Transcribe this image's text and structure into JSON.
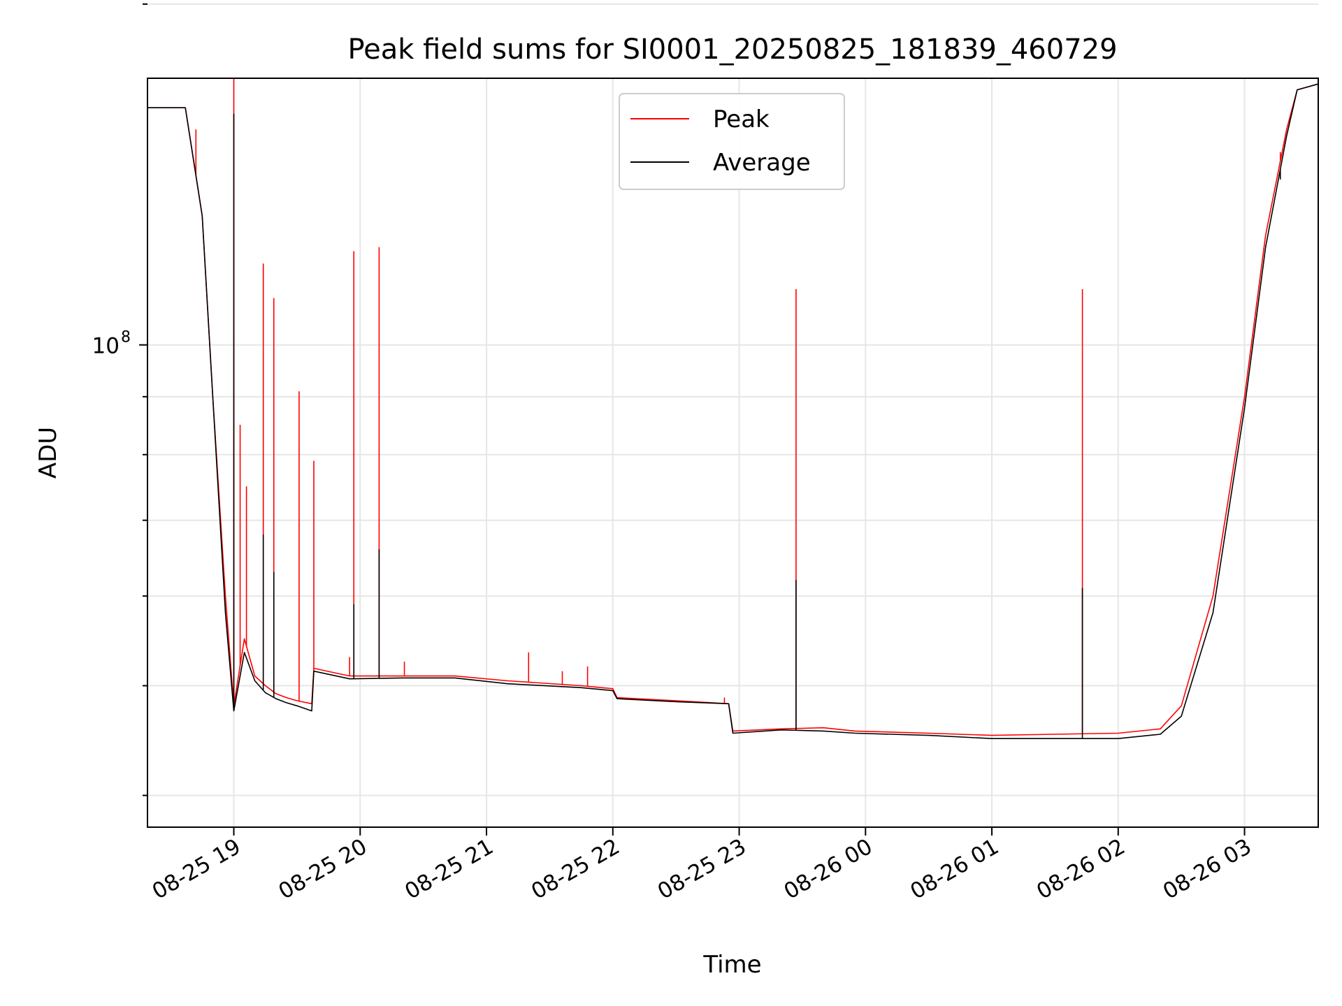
{
  "chart_data": {
    "type": "line",
    "title": "Peak field sums for SI0001_20250825_181839_460729",
    "xlabel": "Time",
    "ylabel": "ADU",
    "y_scale": "log",
    "grid": true,
    "legend_placement": "upper-center",
    "x_range": [
      "2025-08-25 18:19",
      "2025-08-26 03:35"
    ],
    "ylim": [
      37500000,
      172000000
    ],
    "x_ticks": [
      {
        "t": "2025-08-25 19:00",
        "label": "08-25 19"
      },
      {
        "t": "2025-08-25 20:00",
        "label": "08-25 20"
      },
      {
        "t": "2025-08-25 21:00",
        "label": "08-25 21"
      },
      {
        "t": "2025-08-25 22:00",
        "label": "08-25 22"
      },
      {
        "t": "2025-08-25 23:00",
        "label": "08-25 23"
      },
      {
        "t": "2025-08-26 00:00",
        "label": "08-26 00"
      },
      {
        "t": "2025-08-26 01:00",
        "label": "08-26 01"
      },
      {
        "t": "2025-08-26 02:00",
        "label": "08-26 02"
      },
      {
        "t": "2025-08-26 03:00",
        "label": "08-26 03"
      }
    ],
    "y_major_ticks": [
      {
        "value": 100000000,
        "label": "10",
        "exponent": "8"
      }
    ],
    "y_minor_gridlines": [
      40000000,
      50000000,
      60000000,
      70000000,
      80000000,
      90000000,
      200000000
    ],
    "series": [
      {
        "name": "Peak",
        "color": "#ff0000",
        "points": [
          [
            "2025-08-25 18:19",
            162000000
          ],
          [
            "2025-08-25 18:37",
            162000000
          ],
          [
            "2025-08-25 18:45",
            130000000
          ],
          [
            "2025-08-25 18:50",
            90000000
          ],
          [
            "2025-08-25 18:56",
            60000000
          ],
          [
            "2025-08-25 19:00",
            48000000
          ],
          [
            "2025-08-25 19:05",
            55000000
          ],
          [
            "2025-08-25 19:10",
            51000000
          ],
          [
            "2025-08-25 19:15",
            50000000
          ],
          [
            "2025-08-25 19:20",
            49200000
          ],
          [
            "2025-08-25 19:25",
            48800000
          ],
          [
            "2025-08-25 19:30",
            48500000
          ],
          [
            "2025-08-25 19:37",
            48200000
          ],
          [
            "2025-08-25 19:38",
            51800000
          ],
          [
            "2025-08-25 19:55",
            51000000
          ],
          [
            "2025-08-25 20:20",
            51000000
          ],
          [
            "2025-08-25 20:45",
            51000000
          ],
          [
            "2025-08-25 21:10",
            50500000
          ],
          [
            "2025-08-25 21:45",
            50000000
          ],
          [
            "2025-08-25 22:00",
            49700000
          ],
          [
            "2025-08-25 22:02",
            48800000
          ],
          [
            "2025-08-25 22:30",
            48500000
          ],
          [
            "2025-08-25 22:55",
            48200000
          ],
          [
            "2025-08-25 22:57",
            45600000
          ],
          [
            "2025-08-25 23:20",
            45800000
          ],
          [
            "2025-08-25 23:40",
            45900000
          ],
          [
            "2025-08-25 23:55",
            45600000
          ],
          [
            "2025-08-26 00:30",
            45400000
          ],
          [
            "2025-08-26 01:00",
            45200000
          ],
          [
            "2025-08-26 01:30",
            45300000
          ],
          [
            "2025-08-26 02:00",
            45400000
          ],
          [
            "2025-08-26 02:20",
            45800000
          ],
          [
            "2025-08-26 02:30",
            48000000
          ],
          [
            "2025-08-26 02:45",
            60000000
          ],
          [
            "2025-08-26 03:00",
            90000000
          ],
          [
            "2025-08-26 03:10",
            125000000
          ],
          [
            "2025-08-26 03:20",
            155000000
          ],
          [
            "2025-08-26 03:25",
            168000000
          ],
          [
            "2025-08-26 03:35",
            170000000
          ]
        ],
        "spikes": [
          [
            "2025-08-25 18:42",
            155000000
          ],
          [
            "2025-08-25 19:00",
            172000000
          ],
          [
            "2025-08-25 19:03",
            85000000
          ],
          [
            "2025-08-25 19:06",
            75000000
          ],
          [
            "2025-08-25 19:14",
            118000000
          ],
          [
            "2025-08-25 19:19",
            110000000
          ],
          [
            "2025-08-25 19:31",
            91000000
          ],
          [
            "2025-08-25 19:38",
            79000000
          ],
          [
            "2025-08-25 19:55",
            53000000
          ],
          [
            "2025-08-25 19:57",
            121000000
          ],
          [
            "2025-08-25 20:09",
            122000000
          ],
          [
            "2025-08-25 20:21",
            52500000
          ],
          [
            "2025-08-25 21:20",
            53500000
          ],
          [
            "2025-08-25 21:36",
            51500000
          ],
          [
            "2025-08-25 21:48",
            52000000
          ],
          [
            "2025-08-25 22:53",
            48800000
          ],
          [
            "2025-08-25 23:27",
            112000000
          ],
          [
            "2025-08-26 01:43",
            112000000
          ],
          [
            "2025-08-26 03:17",
            148000000
          ]
        ]
      },
      {
        "name": "Average",
        "color": "#000000",
        "points": [
          [
            "2025-08-25 18:19",
            162000000
          ],
          [
            "2025-08-25 18:37",
            162000000
          ],
          [
            "2025-08-25 18:45",
            130000000
          ],
          [
            "2025-08-25 18:50",
            90000000
          ],
          [
            "2025-08-25 18:56",
            58000000
          ],
          [
            "2025-08-25 19:00",
            47500000
          ],
          [
            "2025-08-25 19:05",
            53500000
          ],
          [
            "2025-08-25 19:10",
            50500000
          ],
          [
            "2025-08-25 19:15",
            49300000
          ],
          [
            "2025-08-25 19:20",
            48700000
          ],
          [
            "2025-08-25 19:25",
            48300000
          ],
          [
            "2025-08-25 19:30",
            48000000
          ],
          [
            "2025-08-25 19:37",
            47500000
          ],
          [
            "2025-08-25 19:38",
            51500000
          ],
          [
            "2025-08-25 19:55",
            50700000
          ],
          [
            "2025-08-25 20:20",
            50800000
          ],
          [
            "2025-08-25 20:45",
            50800000
          ],
          [
            "2025-08-25 21:10",
            50200000
          ],
          [
            "2025-08-25 21:45",
            49800000
          ],
          [
            "2025-08-25 22:00",
            49500000
          ],
          [
            "2025-08-25 22:02",
            48700000
          ],
          [
            "2025-08-25 22:30",
            48400000
          ],
          [
            "2025-08-25 22:55",
            48200000
          ],
          [
            "2025-08-25 22:57",
            45400000
          ],
          [
            "2025-08-25 23:20",
            45700000
          ],
          [
            "2025-08-25 23:40",
            45600000
          ],
          [
            "2025-08-25 23:55",
            45400000
          ],
          [
            "2025-08-26 00:30",
            45200000
          ],
          [
            "2025-08-26 01:00",
            44900000
          ],
          [
            "2025-08-26 01:30",
            44900000
          ],
          [
            "2025-08-26 02:00",
            44900000
          ],
          [
            "2025-08-26 02:20",
            45300000
          ],
          [
            "2025-08-26 02:30",
            47000000
          ],
          [
            "2025-08-26 02:45",
            58000000
          ],
          [
            "2025-08-26 03:00",
            88000000
          ],
          [
            "2025-08-26 03:10",
            122000000
          ],
          [
            "2025-08-26 03:20",
            153000000
          ],
          [
            "2025-08-26 03:25",
            168000000
          ],
          [
            "2025-08-26 03:35",
            170000000
          ]
        ],
        "spikes": [
          [
            "2025-08-25 19:00",
            160000000
          ],
          [
            "2025-08-25 19:14",
            68000000
          ],
          [
            "2025-08-25 19:19",
            63000000
          ],
          [
            "2025-08-25 19:57",
            59000000
          ],
          [
            "2025-08-25 20:09",
            66000000
          ],
          [
            "2025-08-25 23:27",
            62000000
          ],
          [
            "2025-08-26 01:43",
            61000000
          ],
          [
            "2025-08-26 03:17",
            140000000
          ]
        ]
      }
    ]
  }
}
